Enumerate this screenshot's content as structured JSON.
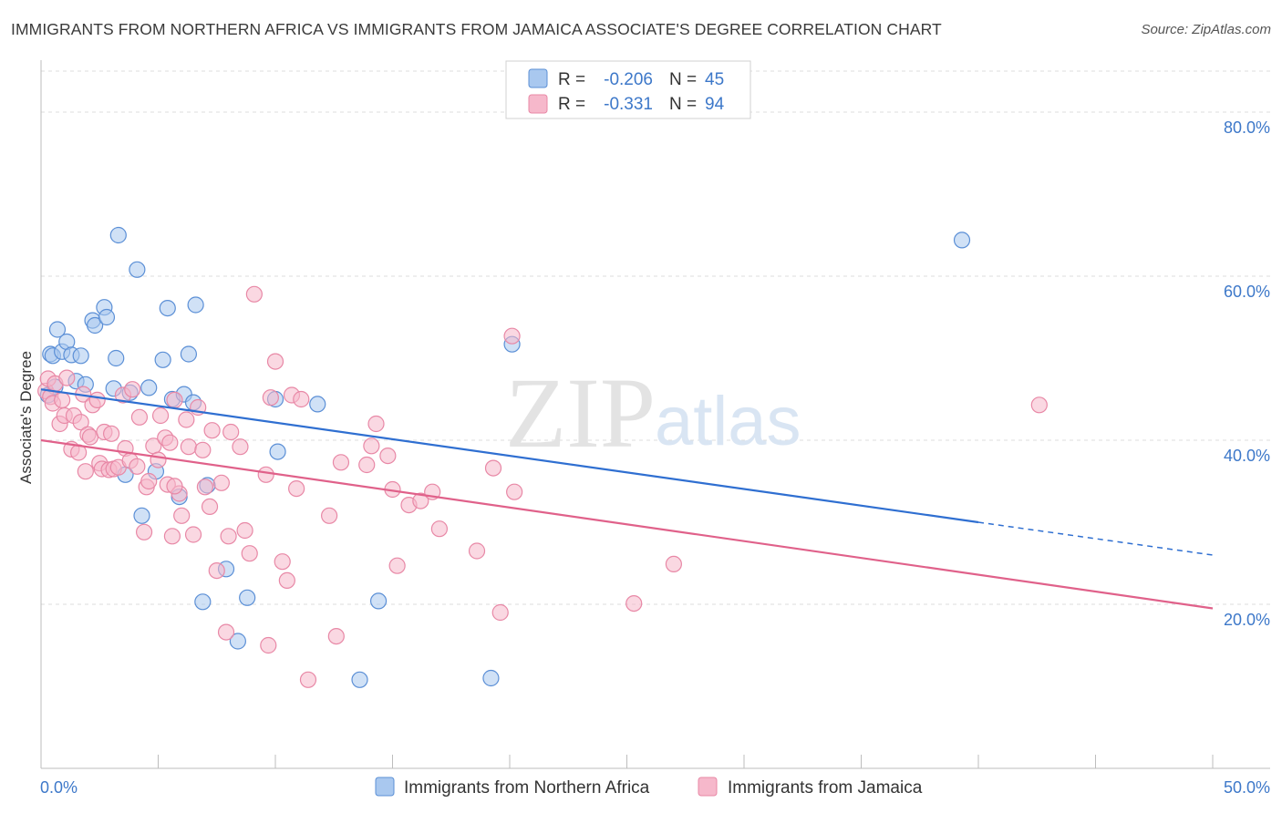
{
  "title": "IMMIGRANTS FROM NORTHERN AFRICA VS IMMIGRANTS FROM JAMAICA ASSOCIATE'S DEGREE CORRELATION CHART",
  "source": "Source: ZipAtlas.com",
  "watermark": {
    "zip": "ZIP",
    "atlas": "atlas"
  },
  "colors": {
    "blue_fill": "#a9c8ef",
    "blue_stroke": "#5b8fd6",
    "blue_line": "#2f6fd1",
    "pink_fill": "#f6b8cb",
    "pink_stroke": "#e888a6",
    "pink_line": "#e0618a",
    "tick_text": "#3d78c9",
    "grid": "#dcdcdc"
  },
  "legend": {
    "rows": [
      {
        "r_label": "R =",
        "r_value": "-0.206",
        "n_label": "N =",
        "n_value": "45"
      },
      {
        "r_label": "R =",
        "r_value": "-0.331",
        "n_label": "N =",
        "n_value": "94"
      }
    ]
  },
  "chart_data": {
    "type": "scatter",
    "xlabel": "",
    "ylabel": "Associate's Degree",
    "xlim": [
      0,
      50
    ],
    "ylim": [
      0,
      85
    ],
    "x_tick_labels": [
      "0.0%",
      "50.0%"
    ],
    "y_tick_labels": [
      "20.0%",
      "40.0%",
      "60.0%",
      "80.0%"
    ],
    "y_ticks": [
      20,
      40,
      60,
      80
    ],
    "grid": true,
    "legend_position": "top-center",
    "series": [
      {
        "name": "Immigrants from Northern Africa",
        "color": "blue",
        "trend": {
          "x0": 0,
          "y0": 46.2,
          "x1": 40,
          "y1": 30.0,
          "dash_to_x": 50,
          "dash_to_y": 26.0
        },
        "points": [
          [
            0.3,
            45.5
          ],
          [
            0.4,
            50.5
          ],
          [
            0.5,
            50.3
          ],
          [
            0.7,
            53.5
          ],
          [
            0.9,
            50.8
          ],
          [
            1.1,
            52.0
          ],
          [
            1.3,
            50.4
          ],
          [
            1.5,
            47.2
          ],
          [
            1.7,
            50.3
          ],
          [
            1.9,
            46.8
          ],
          [
            2.2,
            54.6
          ],
          [
            2.3,
            54.0
          ],
          [
            2.7,
            56.2
          ],
          [
            2.8,
            55.0
          ],
          [
            3.1,
            46.3
          ],
          [
            3.2,
            50.0
          ],
          [
            3.3,
            65.0
          ],
          [
            3.6,
            35.8
          ],
          [
            3.8,
            45.8
          ],
          [
            4.1,
            60.8
          ],
          [
            4.3,
            30.8
          ],
          [
            4.6,
            46.4
          ],
          [
            4.9,
            36.2
          ],
          [
            5.2,
            49.8
          ],
          [
            5.4,
            56.1
          ],
          [
            5.6,
            45.0
          ],
          [
            5.9,
            33.1
          ],
          [
            6.1,
            45.6
          ],
          [
            6.3,
            50.5
          ],
          [
            6.5,
            44.6
          ],
          [
            6.6,
            56.5
          ],
          [
            6.9,
            20.3
          ],
          [
            7.1,
            34.5
          ],
          [
            7.9,
            24.3
          ],
          [
            8.4,
            15.5
          ],
          [
            8.8,
            20.8
          ],
          [
            10.0,
            45.0
          ],
          [
            10.1,
            38.6
          ],
          [
            11.8,
            44.4
          ],
          [
            13.6,
            10.8
          ],
          [
            14.4,
            20.4
          ],
          [
            19.2,
            11.0
          ],
          [
            20.1,
            51.7
          ],
          [
            39.3,
            64.4
          ],
          [
            0.6,
            46.5
          ]
        ]
      },
      {
        "name": "Immigrants from Jamaica",
        "color": "pink",
        "trend": {
          "x0": 0,
          "y0": 40.0,
          "x1": 50,
          "y1": 19.5
        },
        "points": [
          [
            0.2,
            46.0
          ],
          [
            0.3,
            47.5
          ],
          [
            0.4,
            45.3
          ],
          [
            0.5,
            44.5
          ],
          [
            0.6,
            46.9
          ],
          [
            0.8,
            42.0
          ],
          [
            0.9,
            44.9
          ],
          [
            1.0,
            43.0
          ],
          [
            1.1,
            47.6
          ],
          [
            1.3,
            38.9
          ],
          [
            1.4,
            43.0
          ],
          [
            1.6,
            38.5
          ],
          [
            1.7,
            42.2
          ],
          [
            1.8,
            45.6
          ],
          [
            2.0,
            40.7
          ],
          [
            2.1,
            40.4
          ],
          [
            2.2,
            44.3
          ],
          [
            2.4,
            44.9
          ],
          [
            2.5,
            37.2
          ],
          [
            2.6,
            36.5
          ],
          [
            2.7,
            41.0
          ],
          [
            2.9,
            36.4
          ],
          [
            3.0,
            40.8
          ],
          [
            3.1,
            36.5
          ],
          [
            3.3,
            36.7
          ],
          [
            3.5,
            45.5
          ],
          [
            3.6,
            39.0
          ],
          [
            3.8,
            37.5
          ],
          [
            3.9,
            46.2
          ],
          [
            4.1,
            36.8
          ],
          [
            4.2,
            42.8
          ],
          [
            4.4,
            28.8
          ],
          [
            4.5,
            34.3
          ],
          [
            4.6,
            35.0
          ],
          [
            4.8,
            39.3
          ],
          [
            5.0,
            37.6
          ],
          [
            5.1,
            43.0
          ],
          [
            5.3,
            40.3
          ],
          [
            5.4,
            34.6
          ],
          [
            5.5,
            39.7
          ],
          [
            5.6,
            28.3
          ],
          [
            5.7,
            44.9
          ],
          [
            5.9,
            33.5
          ],
          [
            6.0,
            30.8
          ],
          [
            6.2,
            42.5
          ],
          [
            6.3,
            39.2
          ],
          [
            6.5,
            28.5
          ],
          [
            6.7,
            44.0
          ],
          [
            6.9,
            38.8
          ],
          [
            7.0,
            34.3
          ],
          [
            7.2,
            31.9
          ],
          [
            7.3,
            41.2
          ],
          [
            7.5,
            24.1
          ],
          [
            7.7,
            34.8
          ],
          [
            7.9,
            16.6
          ],
          [
            8.0,
            28.3
          ],
          [
            8.1,
            41.0
          ],
          [
            8.5,
            39.2
          ],
          [
            8.7,
            29.0
          ],
          [
            8.9,
            26.2
          ],
          [
            9.1,
            57.8
          ],
          [
            9.6,
            35.8
          ],
          [
            9.8,
            45.2
          ],
          [
            10.0,
            49.6
          ],
          [
            10.3,
            25.2
          ],
          [
            10.5,
            22.9
          ],
          [
            10.7,
            45.5
          ],
          [
            10.9,
            34.1
          ],
          [
            11.1,
            45.0
          ],
          [
            11.4,
            10.8
          ],
          [
            12.3,
            30.8
          ],
          [
            12.6,
            16.1
          ],
          [
            12.8,
            37.3
          ],
          [
            13.9,
            37.0
          ],
          [
            14.1,
            39.3
          ],
          [
            14.3,
            42.0
          ],
          [
            14.8,
            38.1
          ],
          [
            15.0,
            34.0
          ],
          [
            15.2,
            24.7
          ],
          [
            15.7,
            32.1
          ],
          [
            16.2,
            32.6
          ],
          [
            16.7,
            33.7
          ],
          [
            17.0,
            29.2
          ],
          [
            18.6,
            26.5
          ],
          [
            19.3,
            36.6
          ],
          [
            19.6,
            19.0
          ],
          [
            20.1,
            52.7
          ],
          [
            20.2,
            33.7
          ],
          [
            25.3,
            20.1
          ],
          [
            27.0,
            24.9
          ],
          [
            42.6,
            44.3
          ],
          [
            9.7,
            15.0
          ],
          [
            1.9,
            36.2
          ],
          [
            5.7,
            34.4
          ]
        ]
      }
    ]
  }
}
